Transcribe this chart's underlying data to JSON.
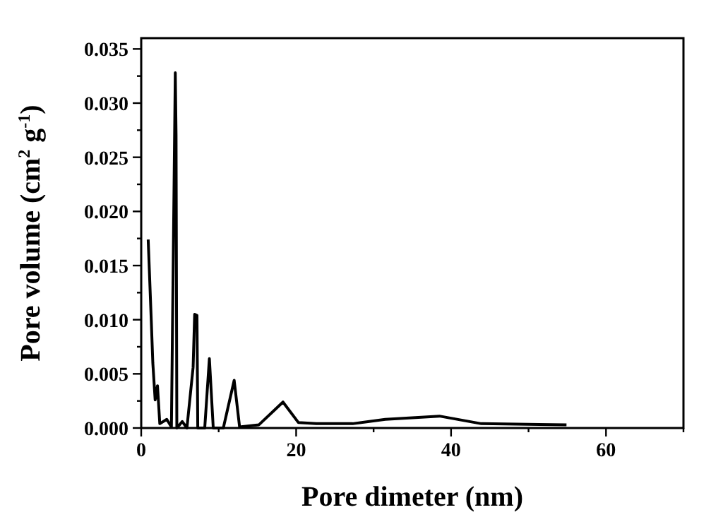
{
  "chart_data": {
    "type": "line",
    "xlabel": "Pore dimeter (nm)",
    "ylabel": "Pore volume (cm$^{2}$ g$^{-1}$)",
    "x": [
      0.9,
      1.3,
      1.5,
      1.8,
      2.1,
      2.4,
      3.3,
      3.9,
      4.4,
      4.5,
      4.6,
      5.3,
      5.9,
      6.7,
      6.9,
      7.2,
      7.3,
      8.2,
      8.8,
      9.3,
      10.6,
      12.0,
      12.7,
      15.2,
      18.3,
      20.3,
      22.6,
      27.3,
      31.5,
      38.5,
      43.9,
      54.9
    ],
    "series": [
      {
        "color": "#000000",
        "values": [
          0.0174,
          0.0099,
          0.006,
          0.0026,
          0.0039,
          0.0004,
          0.0008,
          0.0001,
          0.0328,
          0.027,
          0.0,
          0.0006,
          0.0,
          0.0056,
          0.0105,
          0.0104,
          0.0,
          0.0,
          0.0064,
          0.0,
          0.0,
          0.0044,
          0.0001,
          0.0003,
          0.0024,
          0.0005,
          0.0004,
          0.0004,
          0.0008,
          0.0011,
          0.0004,
          0.0003
        ]
      }
    ],
    "xlim": [
      0,
      70
    ],
    "ylim": [
      0,
      0.036
    ],
    "xticks": [
      0,
      {
        "value": 10,
        "label": null
      },
      20,
      {
        "value": 30,
        "label": null
      },
      40,
      {
        "value": 50,
        "label": null
      },
      60,
      {
        "value": 70,
        "label": null
      }
    ],
    "yticks": [
      {
        "value": 0,
        "label": "0.000"
      },
      {
        "value": 0.0025,
        "label": null
      },
      {
        "value": 0.005,
        "label": "0.005"
      },
      {
        "value": 0.0075,
        "label": null
      },
      {
        "value": 0.01,
        "label": "0.010"
      },
      {
        "value": 0.0125,
        "label": null
      },
      {
        "value": 0.015,
        "label": "0.015"
      },
      {
        "value": 0.0175,
        "label": null
      },
      {
        "value": 0.02,
        "label": "0.020"
      },
      {
        "value": 0.0225,
        "label": null
      },
      {
        "value": 0.025,
        "label": "0.025"
      },
      {
        "value": 0.0275,
        "label": null
      },
      {
        "value": 0.03,
        "label": "0.030"
      },
      {
        "value": 0.0325,
        "label": null
      },
      {
        "value": 0.035,
        "label": "0.035"
      }
    ],
    "grid": false,
    "marker": "none",
    "line_style": "solid"
  }
}
